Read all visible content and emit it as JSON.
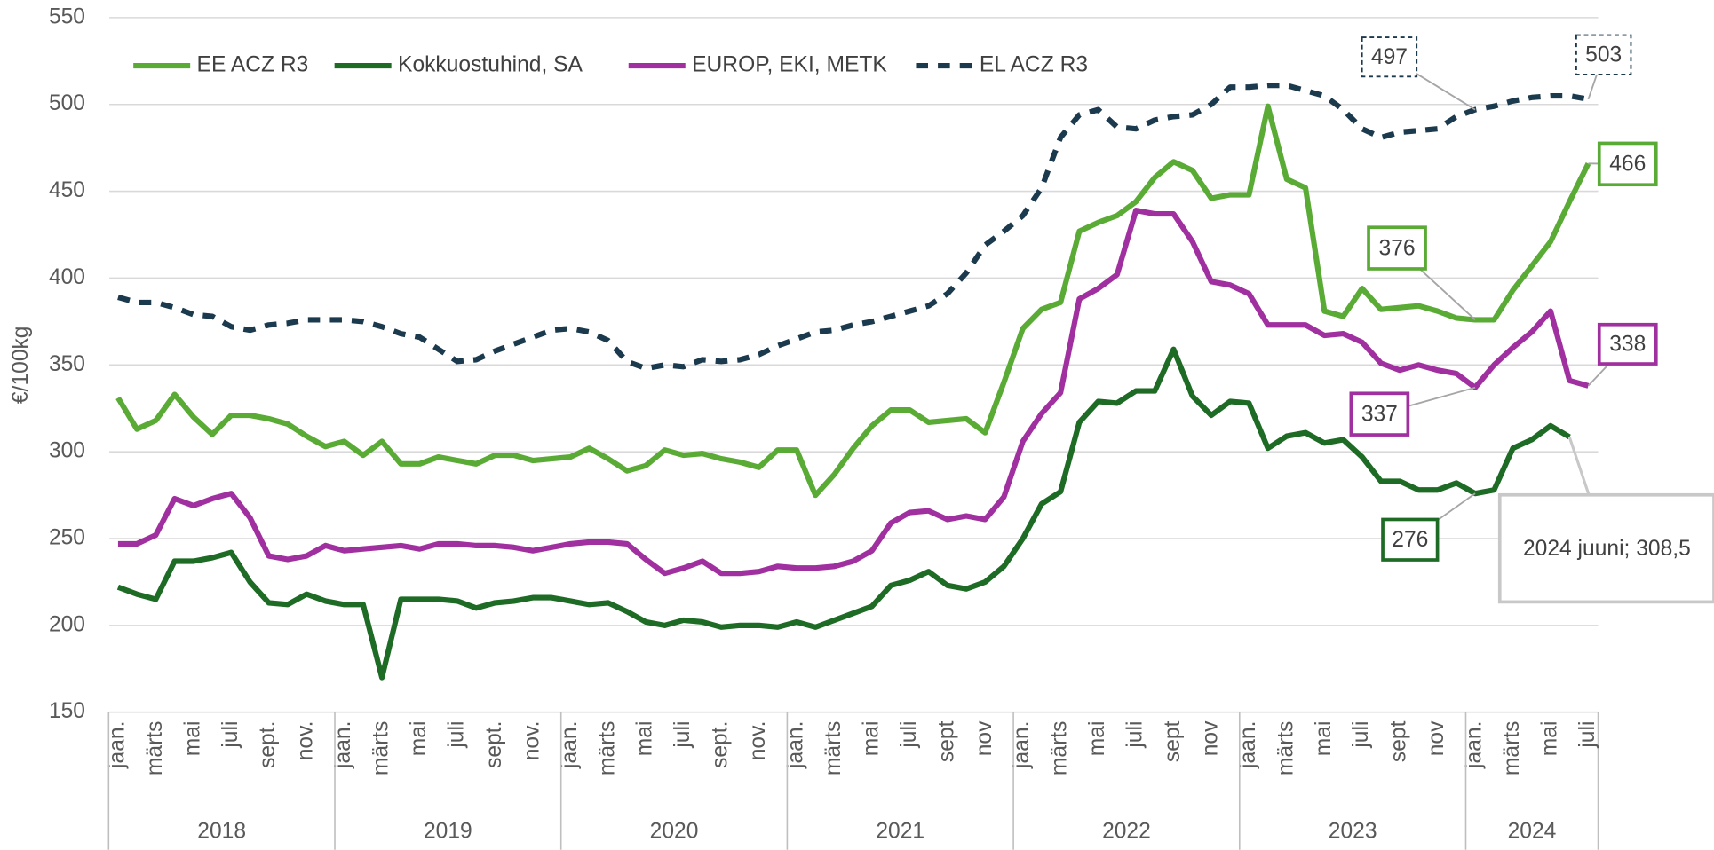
{
  "chart_data": {
    "type": "line",
    "y_label": "€/100kg",
    "ylim": [
      150,
      550
    ],
    "yticks": [
      150,
      200,
      250,
      300,
      350,
      400,
      450,
      500,
      550
    ],
    "grid": true,
    "legend": "top",
    "categories": [
      "jaan.",
      null,
      "märts",
      null,
      "mai",
      null,
      "juli",
      null,
      "sept.",
      null,
      "nov.",
      null,
      "jaan.",
      null,
      "märts",
      null,
      "mai",
      null,
      "juli",
      null,
      "sept.",
      null,
      "nov.",
      null,
      "jaan.",
      null,
      "märts",
      null,
      "mai",
      null,
      "juli",
      null,
      "sept.",
      null,
      "nov.",
      null,
      "jaan.",
      null,
      "märts",
      null,
      "mai",
      null,
      "juli",
      null,
      "sept",
      null,
      "nov",
      null,
      "jaan.",
      null,
      "märts",
      null,
      "mai",
      null,
      "juli",
      null,
      "sept",
      null,
      "nov",
      null,
      "jaan.",
      null,
      "märts",
      null,
      "mai",
      null,
      "juli",
      null,
      "sept",
      null,
      "nov",
      null,
      "jaan.",
      null,
      "märts",
      null,
      "mai",
      null,
      "juli"
    ],
    "year_groups": [
      "2018",
      "2019",
      "2020",
      "2021",
      "2022",
      "2023",
      "2024"
    ],
    "series": [
      {
        "name": "EE ACZ R3",
        "color": "#5aab35",
        "dash": false,
        "values": [
          331,
          313,
          318,
          333,
          320,
          310,
          321,
          321,
          319,
          316,
          309,
          303,
          306,
          298,
          306,
          293,
          293,
          297,
          295,
          293,
          298,
          298,
          295,
          296,
          297,
          302,
          296,
          289,
          292,
          301,
          298,
          299,
          296,
          294,
          291,
          301,
          301,
          275,
          287,
          302,
          315,
          324,
          324,
          317,
          318,
          319,
          311,
          340,
          371,
          382,
          386,
          427,
          432,
          436,
          444,
          458,
          467,
          462,
          446,
          448,
          448,
          499,
          457,
          452,
          381,
          378,
          394,
          382,
          383,
          384,
          381,
          377,
          376,
          376,
          393,
          407,
          421,
          444,
          466
        ],
        "value_labels": [
          null,
          null,
          null,
          null,
          null,
          null,
          null,
          null,
          null,
          null,
          null,
          null,
          null,
          null,
          null,
          null,
          null,
          null,
          null,
          null,
          null,
          null,
          null,
          null,
          null,
          null,
          null,
          null,
          null,
          null,
          null,
          null,
          null,
          null,
          null,
          null,
          null,
          null,
          null,
          null,
          null,
          null,
          null,
          null,
          null,
          null,
          null,
          null,
          null,
          null,
          null,
          null,
          null,
          null,
          null,
          null,
          null,
          null,
          null,
          null,
          null,
          null,
          null,
          null,
          null,
          null,
          null,
          null,
          null,
          null,
          null,
          null,
          "376",
          null,
          null,
          null,
          null,
          null,
          "466"
        ]
      },
      {
        "name": "Kokkuostuhind, SA",
        "color": "#1e6b25",
        "dash": false,
        "values": [
          222,
          218,
          215,
          237,
          237,
          239,
          242,
          225,
          213,
          212,
          218,
          214,
          212,
          212,
          170,
          215,
          215,
          215,
          214,
          210,
          213,
          214,
          216,
          216,
          214,
          212,
          213,
          208,
          202,
          200,
          203,
          202,
          199,
          200,
          200,
          199,
          202,
          199,
          203,
          207,
          211,
          223,
          226,
          231,
          223,
          221,
          225,
          234,
          250,
          270,
          277,
          317,
          329,
          328,
          335,
          335,
          359,
          332,
          321,
          329,
          328,
          302,
          309,
          311,
          305,
          307,
          297,
          283,
          283,
          278,
          278,
          282,
          276,
          278,
          302,
          307,
          315,
          308.5,
          null
        ],
        "value_labels": [
          null,
          null,
          null,
          null,
          null,
          null,
          null,
          null,
          null,
          null,
          null,
          null,
          null,
          null,
          null,
          null,
          null,
          null,
          null,
          null,
          null,
          null,
          null,
          null,
          null,
          null,
          null,
          null,
          null,
          null,
          null,
          null,
          null,
          null,
          null,
          null,
          null,
          null,
          null,
          null,
          null,
          null,
          null,
          null,
          null,
          null,
          null,
          null,
          null,
          null,
          null,
          null,
          null,
          null,
          null,
          null,
          null,
          null,
          null,
          null,
          null,
          null,
          null,
          null,
          null,
          null,
          null,
          null,
          null,
          null,
          null,
          null,
          "276",
          null,
          null,
          null,
          null,
          "2024 juuni;  308,5",
          null
        ]
      },
      {
        "name": "EUROP, EKI, METK",
        "color": "#a0309f",
        "dash": false,
        "values": [
          247,
          247,
          252,
          273,
          269,
          273,
          276,
          262,
          240,
          238,
          240,
          246,
          243,
          244,
          245,
          246,
          244,
          247,
          247,
          246,
          246,
          245,
          243,
          245,
          247,
          248,
          248,
          247,
          238,
          230,
          233,
          237,
          230,
          230,
          231,
          234,
          233,
          233,
          234,
          237,
          243,
          259,
          265,
          266,
          261,
          263,
          261,
          274,
          306,
          322,
          334,
          388,
          394,
          402,
          439,
          437,
          437,
          421,
          398,
          396,
          391,
          373,
          373,
          373,
          367,
          368,
          363,
          351,
          347,
          350,
          347,
          345,
          337,
          350,
          360,
          369,
          381,
          341,
          338
        ],
        "value_labels": [
          null,
          null,
          null,
          null,
          null,
          null,
          null,
          null,
          null,
          null,
          null,
          null,
          null,
          null,
          null,
          null,
          null,
          null,
          null,
          null,
          null,
          null,
          null,
          null,
          null,
          null,
          null,
          null,
          null,
          null,
          null,
          null,
          null,
          null,
          null,
          null,
          null,
          null,
          null,
          null,
          null,
          null,
          null,
          null,
          null,
          null,
          null,
          null,
          null,
          null,
          null,
          null,
          null,
          null,
          null,
          null,
          null,
          null,
          null,
          null,
          null,
          null,
          null,
          null,
          null,
          null,
          null,
          null,
          null,
          null,
          null,
          null,
          "337",
          null,
          null,
          null,
          null,
          null,
          "338"
        ]
      },
      {
        "name": "EL ACZ R3",
        "color": "#1b3a4e",
        "dash": true,
        "values": [
          389,
          386,
          386,
          383,
          379,
          378,
          372,
          370,
          373,
          374,
          376,
          376,
          376,
          375,
          372,
          368,
          366,
          359,
          352,
          353,
          358,
          362,
          366,
          370,
          371,
          369,
          364,
          352,
          348,
          350,
          349,
          353,
          352,
          353,
          356,
          361,
          365,
          369,
          370,
          373,
          375,
          378,
          381,
          384,
          391,
          403,
          419,
          427,
          436,
          452,
          481,
          494,
          497,
          487,
          486,
          491,
          493,
          494,
          500,
          510,
          510,
          511,
          511,
          508,
          505,
          497,
          486,
          481,
          484,
          485,
          486,
          493,
          497,
          499,
          502,
          504,
          505,
          505,
          503
        ],
        "value_labels": [
          null,
          null,
          null,
          null,
          null,
          null,
          null,
          null,
          null,
          null,
          null,
          null,
          null,
          null,
          null,
          null,
          null,
          null,
          null,
          null,
          null,
          null,
          null,
          null,
          null,
          null,
          null,
          null,
          null,
          null,
          null,
          null,
          null,
          null,
          null,
          null,
          null,
          null,
          null,
          null,
          null,
          null,
          null,
          null,
          null,
          null,
          null,
          null,
          null,
          null,
          null,
          null,
          null,
          null,
          null,
          null,
          null,
          null,
          null,
          null,
          null,
          null,
          null,
          null,
          null,
          null,
          null,
          null,
          null,
          null,
          null,
          null,
          "497",
          null,
          null,
          null,
          null,
          null,
          "503"
        ]
      }
    ]
  }
}
